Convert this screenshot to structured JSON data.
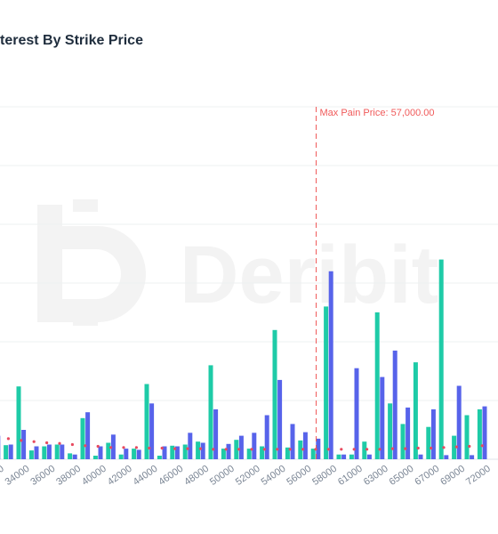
{
  "header": {
    "title": "terest By Strike Price"
  },
  "watermark": {
    "text": "Deribit",
    "icon": "deribit-logo-icon"
  },
  "colors": {
    "calls": "#1ecba7",
    "puts": "#5763ea",
    "notional": "#e84a5f",
    "max_pain": "#f05a5a",
    "grid": "#eef0f2"
  },
  "chart_data": {
    "type": "bar",
    "title": "",
    "xlabel": "",
    "ylabel": "",
    "ylim": [
      0,
      6
    ],
    "grid": true,
    "legend": "none",
    "categories": [
      "32000",
      "33000",
      "34000",
      "35000",
      "36000",
      "37000",
      "38000",
      "39000",
      "40000",
      "41000",
      "42000",
      "43000",
      "44000",
      "45000",
      "46000",
      "47000",
      "48000",
      "49000",
      "50000",
      "51000",
      "52000",
      "53000",
      "54000",
      "55000",
      "56000",
      "57000",
      "58000",
      "60000",
      "61000",
      "62000",
      "63000",
      "64000",
      "65000",
      "66000",
      "67000",
      "68000",
      "69000",
      "70000",
      "72000"
    ],
    "tick_labels": [
      "32000",
      "34000",
      "36000",
      "38000",
      "40000",
      "42000",
      "44000",
      "46000",
      "48000",
      "50000",
      "52000",
      "54000",
      "56000",
      "58000",
      "61000",
      "63000",
      "65000",
      "67000",
      "69000",
      "72000"
    ],
    "series": [
      {
        "values": [
          0.45,
          0.24,
          1.24,
          0.15,
          0.22,
          0.25,
          0.1,
          0.7,
          0.06,
          0.28,
          0.08,
          0.18,
          1.28,
          0.06,
          0.23,
          0.25,
          0.3,
          1.6,
          0.18,
          0.33,
          0.18,
          0.22,
          2.2,
          0.2,
          0.32,
          0.18,
          2.6,
          0.08,
          0.08,
          0.3,
          2.5,
          0.95,
          0.6,
          1.65,
          0.55,
          3.4,
          0.4,
          0.75,
          0.85
        ]
      },
      {
        "values": [
          0.4,
          0.25,
          0.5,
          0.22,
          0.25,
          0.25,
          0.08,
          0.8,
          0.22,
          0.42,
          0.18,
          0.16,
          0.95,
          0.22,
          0.22,
          0.45,
          0.28,
          0.85,
          0.26,
          0.4,
          0.45,
          0.75,
          1.35,
          0.6,
          0.46,
          0.35,
          3.2,
          0.08,
          1.55,
          0.08,
          1.4,
          1.85,
          0.88,
          0.08,
          0.85,
          0.07,
          1.25,
          0.07,
          0.9
        ]
      },
      {
        "values": [
          0.38,
          0.35,
          0.32,
          0.3,
          0.28,
          0.27,
          0.25,
          0.23,
          0.22,
          0.2,
          0.2,
          0.2,
          0.19,
          0.19,
          0.18,
          0.18,
          0.18,
          0.17,
          0.17,
          0.17,
          0.17,
          0.17,
          0.17,
          0.17,
          0.17,
          0.17,
          0.17,
          0.17,
          0.17,
          0.17,
          0.17,
          0.18,
          0.18,
          0.19,
          0.19,
          0.2,
          0.21,
          0.22,
          0.23
        ]
      }
    ],
    "annotations": [
      {
        "text": "Max Pain Price: 57,000.00",
        "x": "57000"
      }
    ]
  }
}
